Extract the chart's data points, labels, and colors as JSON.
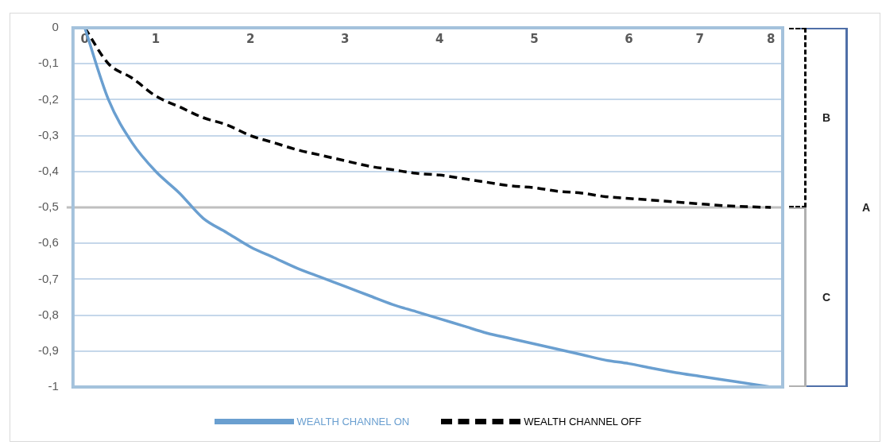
{
  "chart_data": {
    "type": "line",
    "categories": [
      "0",
      null,
      null,
      "1",
      null,
      null,
      null,
      "2",
      null,
      null,
      null,
      "3",
      null,
      null,
      null,
      "4",
      null,
      null,
      null,
      "5",
      null,
      null,
      null,
      "6",
      null,
      null,
      "7",
      null,
      null,
      "8"
    ],
    "series": [
      {
        "name": "WEALTH CHANNEL ON",
        "color": "#6a9fd0",
        "line_style": "solid",
        "values": [
          0,
          -0.2,
          -0.32,
          -0.4,
          -0.46,
          -0.53,
          -0.57,
          -0.61,
          -0.64,
          -0.67,
          -0.695,
          -0.72,
          -0.745,
          -0.77,
          -0.79,
          -0.81,
          -0.83,
          -0.85,
          -0.865,
          -0.88,
          -0.895,
          -0.91,
          -0.925,
          -0.935,
          -0.948,
          -0.96,
          -0.97,
          -0.98,
          -0.99,
          -1
        ]
      },
      {
        "name": "WEALTH CHANNEL OFF",
        "color": "#000000",
        "line_style": "dashed",
        "values": [
          0,
          -0.1,
          -0.14,
          -0.19,
          -0.22,
          -0.25,
          -0.27,
          -0.3,
          -0.32,
          -0.34,
          -0.355,
          -0.37,
          -0.385,
          -0.395,
          -0.405,
          -0.41,
          -0.42,
          -0.43,
          -0.44,
          -0.445,
          -0.455,
          -0.46,
          -0.47,
          -0.475,
          -0.48,
          -0.485,
          -0.49,
          -0.495,
          -0.498,
          -0.5
        ]
      }
    ],
    "ylim": [
      -1,
      0
    ],
    "yticks": [
      0,
      {
        "value": -0.1,
        "label": "-0,1"
      },
      {
        "value": -0.2,
        "label": "-0,2"
      },
      {
        "value": -0.3,
        "label": "-0,3"
      },
      {
        "value": -0.4,
        "label": "-0,4"
      },
      {
        "value": -0.5,
        "label": "-0,5"
      },
      {
        "value": -0.6,
        "label": "-0,6"
      },
      {
        "value": -0.7,
        "label": "-0,7"
      },
      {
        "value": -0.8,
        "label": "-0,8"
      },
      {
        "value": -0.9,
        "label": "-0,9"
      },
      -1
    ],
    "ref_lines": [
      {
        "axis": "y",
        "value": -0.5,
        "color": "#bfbfbf"
      }
    ],
    "annotations": [
      "A",
      "B",
      "C"
    ],
    "grid": "y",
    "legend": "bottom",
    "marker": "none"
  }
}
